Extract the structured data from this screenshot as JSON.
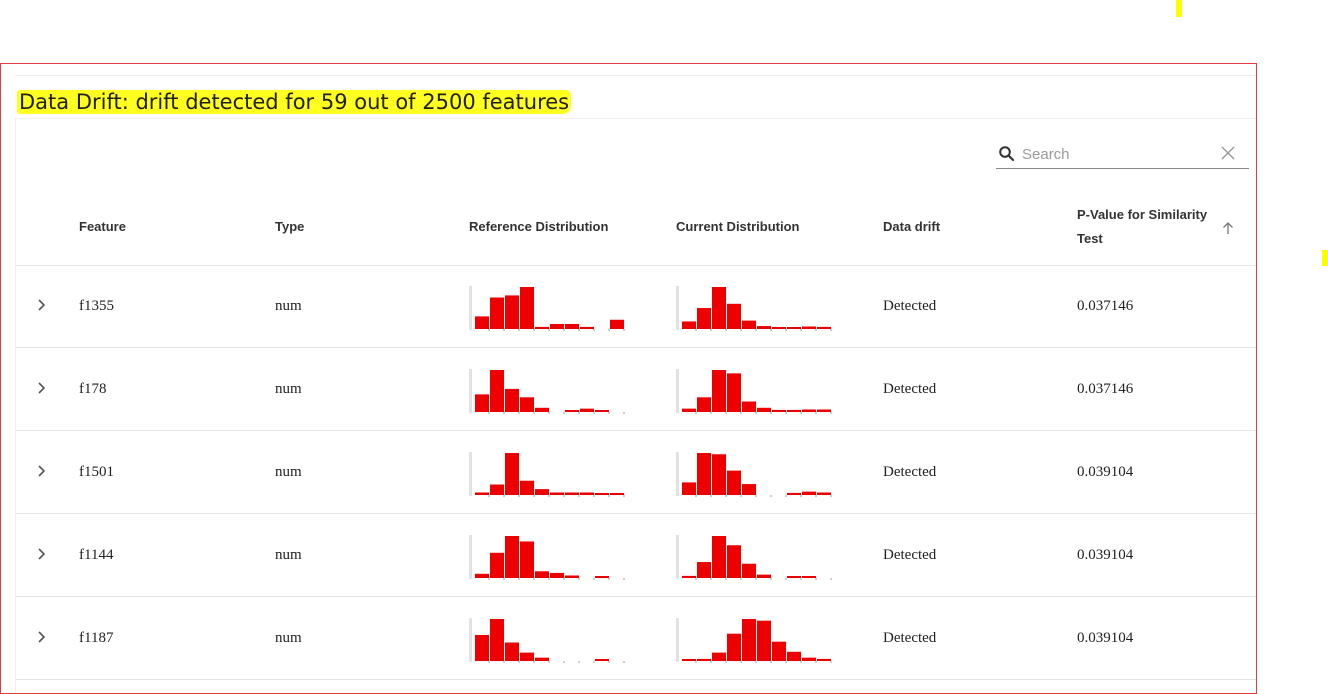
{
  "title": "Data Drift: drift detected for 59 out of 2500 features",
  "search": {
    "placeholder": "Search",
    "value": ""
  },
  "columns": {
    "feature": "Feature",
    "type": "Type",
    "reference": "Reference Distribution",
    "current": "Current Distribution",
    "drift": "Data drift",
    "pvalue_line1": "P-Value for Similarity",
    "pvalue_line2": "Test"
  },
  "sort": {
    "column": "P-Value for Similarity Test",
    "direction": "ascending",
    "icon": "arrow-up-icon"
  },
  "colors": {
    "histogram": "#ee0000",
    "axis": "#9e9e9e",
    "highlight": "#ffff20",
    "frame": "#e43b3b"
  },
  "rows": [
    {
      "feature": "f1355",
      "type": "num",
      "drift": "Detected",
      "pvalue": "0.037146",
      "ref": [
        0.3,
        0.75,
        0.8,
        1.0,
        0.05,
        0.12,
        0.12,
        0.05,
        0,
        0.22
      ],
      "cur": [
        0.18,
        0.5,
        1.0,
        0.6,
        0.2,
        0.07,
        0.03,
        0.03,
        0.06,
        0.05
      ]
    },
    {
      "feature": "f178",
      "type": "num",
      "drift": "Detected",
      "pvalue": "0.037146",
      "ref": [
        0.42,
        1.0,
        0.55,
        0.35,
        0.1,
        0,
        0.04,
        0.08,
        0.04,
        0
      ],
      "cur": [
        0.08,
        0.35,
        1.0,
        0.92,
        0.25,
        0.1,
        0.05,
        0.05,
        0.06,
        0.06
      ]
    },
    {
      "feature": "f1501",
      "type": "num",
      "drift": "Detected",
      "pvalue": "0.039104",
      "ref": [
        0.06,
        0.25,
        1.0,
        0.34,
        0.14,
        0.06,
        0.06,
        0.06,
        0.04,
        0.04
      ],
      "cur": [
        0.3,
        1.0,
        0.97,
        0.58,
        0.26,
        0,
        0,
        0.05,
        0.08,
        0.06
      ]
    },
    {
      "feature": "f1144",
      "type": "num",
      "drift": "Detected",
      "pvalue": "0.039104",
      "ref": [
        0.1,
        0.6,
        1.0,
        0.87,
        0.16,
        0.12,
        0.06,
        0,
        0.04,
        0
      ],
      "cur": [
        0.05,
        0.38,
        1.0,
        0.78,
        0.34,
        0.08,
        0,
        0.03,
        0.03,
        0
      ]
    },
    {
      "feature": "f1187",
      "type": "num",
      "drift": "Detected",
      "pvalue": "0.039104",
      "ref": [
        0.62,
        1.0,
        0.44,
        0.2,
        0.08,
        0,
        0,
        0,
        0.04,
        0
      ],
      "cur": [
        0.02,
        0.05,
        0.2,
        0.65,
        1.0,
        0.96,
        0.46,
        0.22,
        0.08,
        0.05
      ]
    }
  ]
}
